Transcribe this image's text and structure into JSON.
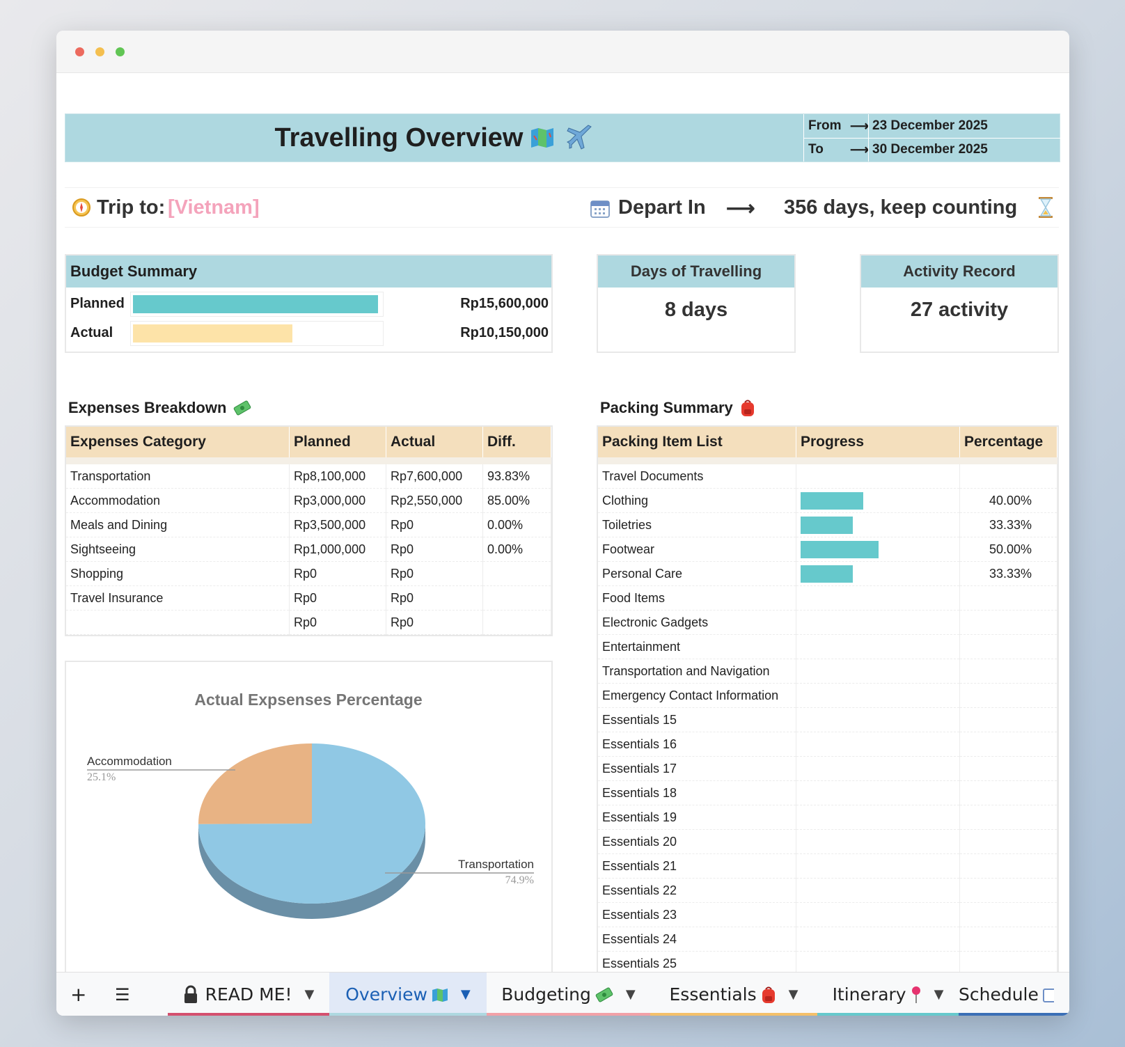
{
  "header": {
    "title": "Travelling Overview",
    "from_label": "From",
    "to_label": "To",
    "arrow": "⟶",
    "from_date": "23 December 2025",
    "to_date": "30 December 2025"
  },
  "trip": {
    "label": "Trip to:",
    "destination": "[Vietnam]",
    "depart_label": "Depart In",
    "arrow": "⟶",
    "countdown": "356 days, keep counting"
  },
  "budget_summary": {
    "title": "Budget Summary",
    "rows": [
      {
        "label": "Planned",
        "value": "Rp15,600,000",
        "fill": 1.0,
        "color": "#66c9cc"
      },
      {
        "label": "Actual",
        "value": "Rp10,150,000",
        "fill": 0.65,
        "color": "#fde3a8"
      }
    ]
  },
  "days_card": {
    "title": "Days of Travelling",
    "value": "8 days"
  },
  "activity_card": {
    "title": "Activity Record",
    "value": "27 activity"
  },
  "expenses": {
    "title": "Expenses Breakdown",
    "columns": [
      "Expenses Category",
      "Planned",
      "Actual",
      "Diff."
    ],
    "rows": [
      {
        "category": "Transportation",
        "planned": "Rp8,100,000",
        "actual": "Rp7,600,000",
        "diff": "93.83%"
      },
      {
        "category": "Accommodation",
        "planned": "Rp3,000,000",
        "actual": "Rp2,550,000",
        "diff": "85.00%"
      },
      {
        "category": "Meals and Dining",
        "planned": "Rp3,500,000",
        "actual": "Rp0",
        "diff": "0.00%"
      },
      {
        "category": "Sightseeing",
        "planned": "Rp1,000,000",
        "actual": "Rp0",
        "diff": "0.00%"
      },
      {
        "category": "Shopping",
        "planned": "Rp0",
        "actual": "Rp0",
        "diff": ""
      },
      {
        "category": "Travel Insurance",
        "planned": "Rp0",
        "actual": "Rp0",
        "diff": ""
      },
      {
        "category": "",
        "planned": "Rp0",
        "actual": "Rp0",
        "diff": ""
      }
    ]
  },
  "packing": {
    "title": "Packing Summary",
    "columns": [
      "Packing Item List",
      "Progress",
      "Percentage"
    ],
    "rows": [
      {
        "item": "Travel Documents",
        "progress": 0,
        "percentage": ""
      },
      {
        "item": "Clothing",
        "progress": 0.4,
        "percentage": "40.00%"
      },
      {
        "item": "Toiletries",
        "progress": 0.3333,
        "percentage": "33.33%"
      },
      {
        "item": "Footwear",
        "progress": 0.5,
        "percentage": "50.00%"
      },
      {
        "item": "Personal Care",
        "progress": 0.3333,
        "percentage": "33.33%"
      },
      {
        "item": "Food Items",
        "progress": 0,
        "percentage": ""
      },
      {
        "item": "Electronic Gadgets",
        "progress": 0,
        "percentage": ""
      },
      {
        "item": "Entertainment",
        "progress": 0,
        "percentage": ""
      },
      {
        "item": "Transportation and Navigation",
        "progress": 0,
        "percentage": ""
      },
      {
        "item": "Emergency Contact Information",
        "progress": 0,
        "percentage": ""
      },
      {
        "item": "Essentials 15",
        "progress": 0,
        "percentage": ""
      },
      {
        "item": "Essentials 16",
        "progress": 0,
        "percentage": ""
      },
      {
        "item": "Essentials 17",
        "progress": 0,
        "percentage": ""
      },
      {
        "item": "Essentials 18",
        "progress": 0,
        "percentage": ""
      },
      {
        "item": "Essentials 19",
        "progress": 0,
        "percentage": ""
      },
      {
        "item": "Essentials 20",
        "progress": 0,
        "percentage": ""
      },
      {
        "item": "Essentials 21",
        "progress": 0,
        "percentage": ""
      },
      {
        "item": "Essentials 22",
        "progress": 0,
        "percentage": ""
      },
      {
        "item": "Essentials 23",
        "progress": 0,
        "percentage": ""
      },
      {
        "item": "Essentials 24",
        "progress": 0,
        "percentage": ""
      },
      {
        "item": "Essentials 25",
        "progress": 0,
        "percentage": ""
      }
    ]
  },
  "chart_data": {
    "type": "pie",
    "title": "Actual Expsenses Percentage",
    "slices": [
      {
        "label": "Transportation",
        "value": 74.9,
        "pct_label": "74.9%",
        "color": "#90c8e4",
        "side": "#6a8fa6"
      },
      {
        "label": "Accommodation",
        "value": 25.1,
        "pct_label": "25.1%",
        "color": "#e8b384",
        "side": "#b58a62"
      }
    ]
  },
  "tabs": {
    "add": "+",
    "menu": "☰",
    "items": [
      {
        "label": "READ ME!",
        "emoji": "",
        "icon": "lock-icon",
        "color": "#d4506e",
        "active": false
      },
      {
        "label": "Overview",
        "emoji": "",
        "icon": "map-icon",
        "color": "#aed8e0",
        "active": true
      },
      {
        "label": "Budgeting",
        "emoji": "",
        "icon": "money-icon",
        "color": "#f2a1a7",
        "active": false
      },
      {
        "label": "Essentials",
        "emoji": "",
        "icon": "backpack-icon",
        "color": "#f4c06a",
        "active": false
      },
      {
        "label": "Itinerary",
        "emoji": "",
        "icon": "pin-icon",
        "color": "#66c9cc",
        "active": false
      },
      {
        "label": "Schedule",
        "emoji": "",
        "icon": "calendar-icon",
        "color": "#3b6fb6",
        "active": false
      }
    ]
  },
  "colors": {
    "header_bg": "#aed8e0",
    "table_header_bg": "#f4dfbd",
    "accent_teal": "#66c9cc",
    "accent_pink": "#f08c93"
  }
}
